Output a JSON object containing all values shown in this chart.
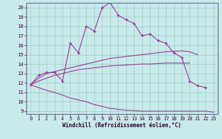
{
  "xlabel": "Windchill (Refroidissement éolien,°C)",
  "xlim": [
    -0.5,
    23.5
  ],
  "ylim": [
    8.7,
    20.5
  ],
  "yticks": [
    9,
    10,
    11,
    12,
    13,
    14,
    15,
    16,
    17,
    18,
    19,
    20
  ],
  "xticks": [
    0,
    1,
    2,
    3,
    4,
    5,
    6,
    7,
    8,
    9,
    10,
    11,
    12,
    13,
    14,
    15,
    16,
    17,
    18,
    19,
    20,
    21,
    22,
    23
  ],
  "bg_color": "#c8eaea",
  "line_color": "#993399",
  "grid_color": "#99ccbb",
  "lines": [
    {
      "x": [
        0,
        1,
        2,
        3,
        4,
        5,
        6,
        7,
        8,
        9,
        10,
        11,
        12,
        13,
        14,
        15,
        16,
        17,
        18,
        19,
        20,
        21,
        22
      ],
      "y": [
        11.8,
        12.8,
        13.1,
        13.1,
        12.2,
        16.2,
        15.2,
        18.0,
        17.5,
        20.0,
        20.5,
        19.2,
        18.7,
        18.3,
        17.0,
        17.2,
        16.5,
        16.2,
        15.2,
        14.7,
        12.2,
        11.7,
        11.5
      ],
      "markers": true
    },
    {
      "x": [
        0,
        1,
        2,
        3,
        4,
        5,
        6,
        7,
        8,
        9,
        10,
        11,
        12,
        13,
        14,
        15,
        16,
        17,
        18,
        19,
        20,
        21,
        22,
        23
      ],
      "y": [
        11.8,
        12.5,
        13.0,
        13.2,
        13.4,
        13.6,
        13.8,
        14.0,
        14.2,
        14.4,
        14.6,
        14.7,
        14.8,
        14.9,
        15.0,
        15.1,
        15.2,
        15.3,
        15.35,
        15.4,
        15.3,
        15.0,
        null,
        null
      ],
      "markers": false
    },
    {
      "x": [
        0,
        1,
        2,
        3,
        4,
        5,
        6,
        7,
        8,
        9,
        10,
        11,
        12,
        13,
        14,
        15,
        16,
        17,
        18,
        19,
        20,
        21,
        22,
        23
      ],
      "y": [
        11.8,
        12.2,
        12.5,
        12.8,
        13.0,
        13.2,
        13.4,
        13.5,
        13.6,
        13.7,
        13.8,
        13.85,
        13.9,
        13.95,
        14.0,
        14.0,
        14.05,
        14.1,
        14.1,
        14.1,
        14.1,
        null,
        null,
        null
      ],
      "markers": false
    },
    {
      "x": [
        0,
        1,
        2,
        3,
        4,
        5,
        6,
        7,
        8,
        9,
        10,
        11,
        12,
        13,
        14,
        15,
        16,
        17,
        18,
        19,
        20,
        21,
        22,
        23
      ],
      "y": [
        11.8,
        11.5,
        11.2,
        11.0,
        10.7,
        10.4,
        10.2,
        10.0,
        9.7,
        9.5,
        9.3,
        9.2,
        9.1,
        9.05,
        9.0,
        9.0,
        9.0,
        9.0,
        9.0,
        9.0,
        9.0,
        9.0,
        9.0,
        8.9
      ],
      "markers": false
    }
  ]
}
